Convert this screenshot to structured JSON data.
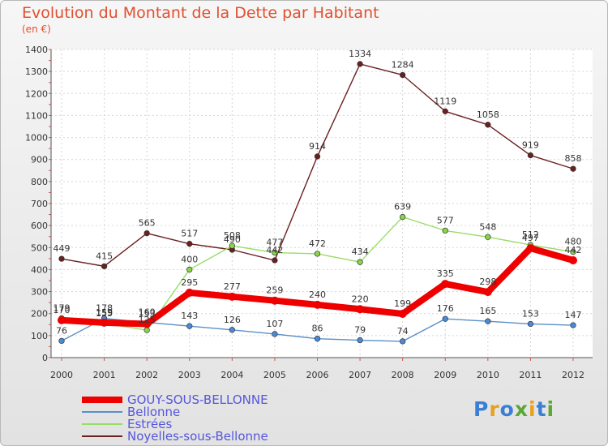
{
  "title": "Evolution du Montant de la Dette par Habitant",
  "subtitle": "(en €)",
  "logo": {
    "text": "Proxiti",
    "colors": [
      "#3a7fd5",
      "#e8a020",
      "#3a7fd5",
      "#5aa832",
      "#e8a020",
      "#3a7fd5",
      "#5aa832"
    ]
  },
  "chart_data": {
    "type": "line",
    "x": [
      "2000",
      "2001",
      "2002",
      "2003",
      "2004",
      "2005",
      "2006",
      "2007",
      "2008",
      "2009",
      "2010",
      "2011",
      "2012"
    ],
    "ylim": [
      0,
      1400
    ],
    "yticks": [
      0,
      100,
      200,
      300,
      400,
      500,
      600,
      700,
      800,
      900,
      1000,
      1100,
      1200,
      1300,
      1400
    ],
    "grid": true,
    "legend_position": "bottom-left",
    "series": [
      {
        "name": "GOUY-SOUS-BELLONNE",
        "color": "#ee0000",
        "marker": "#ee0000",
        "values": [
          170,
          159,
          153,
          295,
          277,
          259,
          240,
          220,
          199,
          335,
          298,
          497,
          442
        ],
        "labels": [
          "170",
          "159",
          "153",
          "295",
          "277",
          "259",
          "240",
          "220",
          "199",
          "335",
          "298",
          "497",
          "442"
        ]
      },
      {
        "name": "Bellonne",
        "color": "#5a8fc8",
        "marker": "#4a8ad8",
        "values": [
          76,
          178,
          160,
          143,
          126,
          107,
          86,
          79,
          74,
          176,
          165,
          153,
          147
        ],
        "labels": [
          "76",
          "178",
          "160",
          "143",
          "126",
          "107",
          "86",
          "79",
          "74",
          "176",
          "165",
          "153",
          "147"
        ]
      },
      {
        "name": "Estrées",
        "color": "#98dd66",
        "marker": "#8ad44a",
        "values": [
          179,
          155,
          125,
          400,
          508,
          477,
          472,
          434,
          639,
          577,
          548,
          512,
          480
        ],
        "labels": [
          "179",
          "155",
          "125",
          "400",
          "508",
          "477",
          "472",
          "434",
          "639",
          "577",
          "548",
          "512",
          "480"
        ]
      },
      {
        "name": "Noyelles-sous-Bellonne",
        "color": "#6b2020",
        "marker": "#6b2020",
        "values": [
          449,
          415,
          565,
          517,
          490,
          442,
          914,
          1334,
          1284,
          1119,
          1058,
          919,
          858
        ],
        "labels": [
          "449",
          "415",
          "565",
          "517",
          "490",
          "442",
          "914",
          "1334",
          "1284",
          "1119",
          "1058",
          "919",
          "858"
        ]
      }
    ]
  }
}
